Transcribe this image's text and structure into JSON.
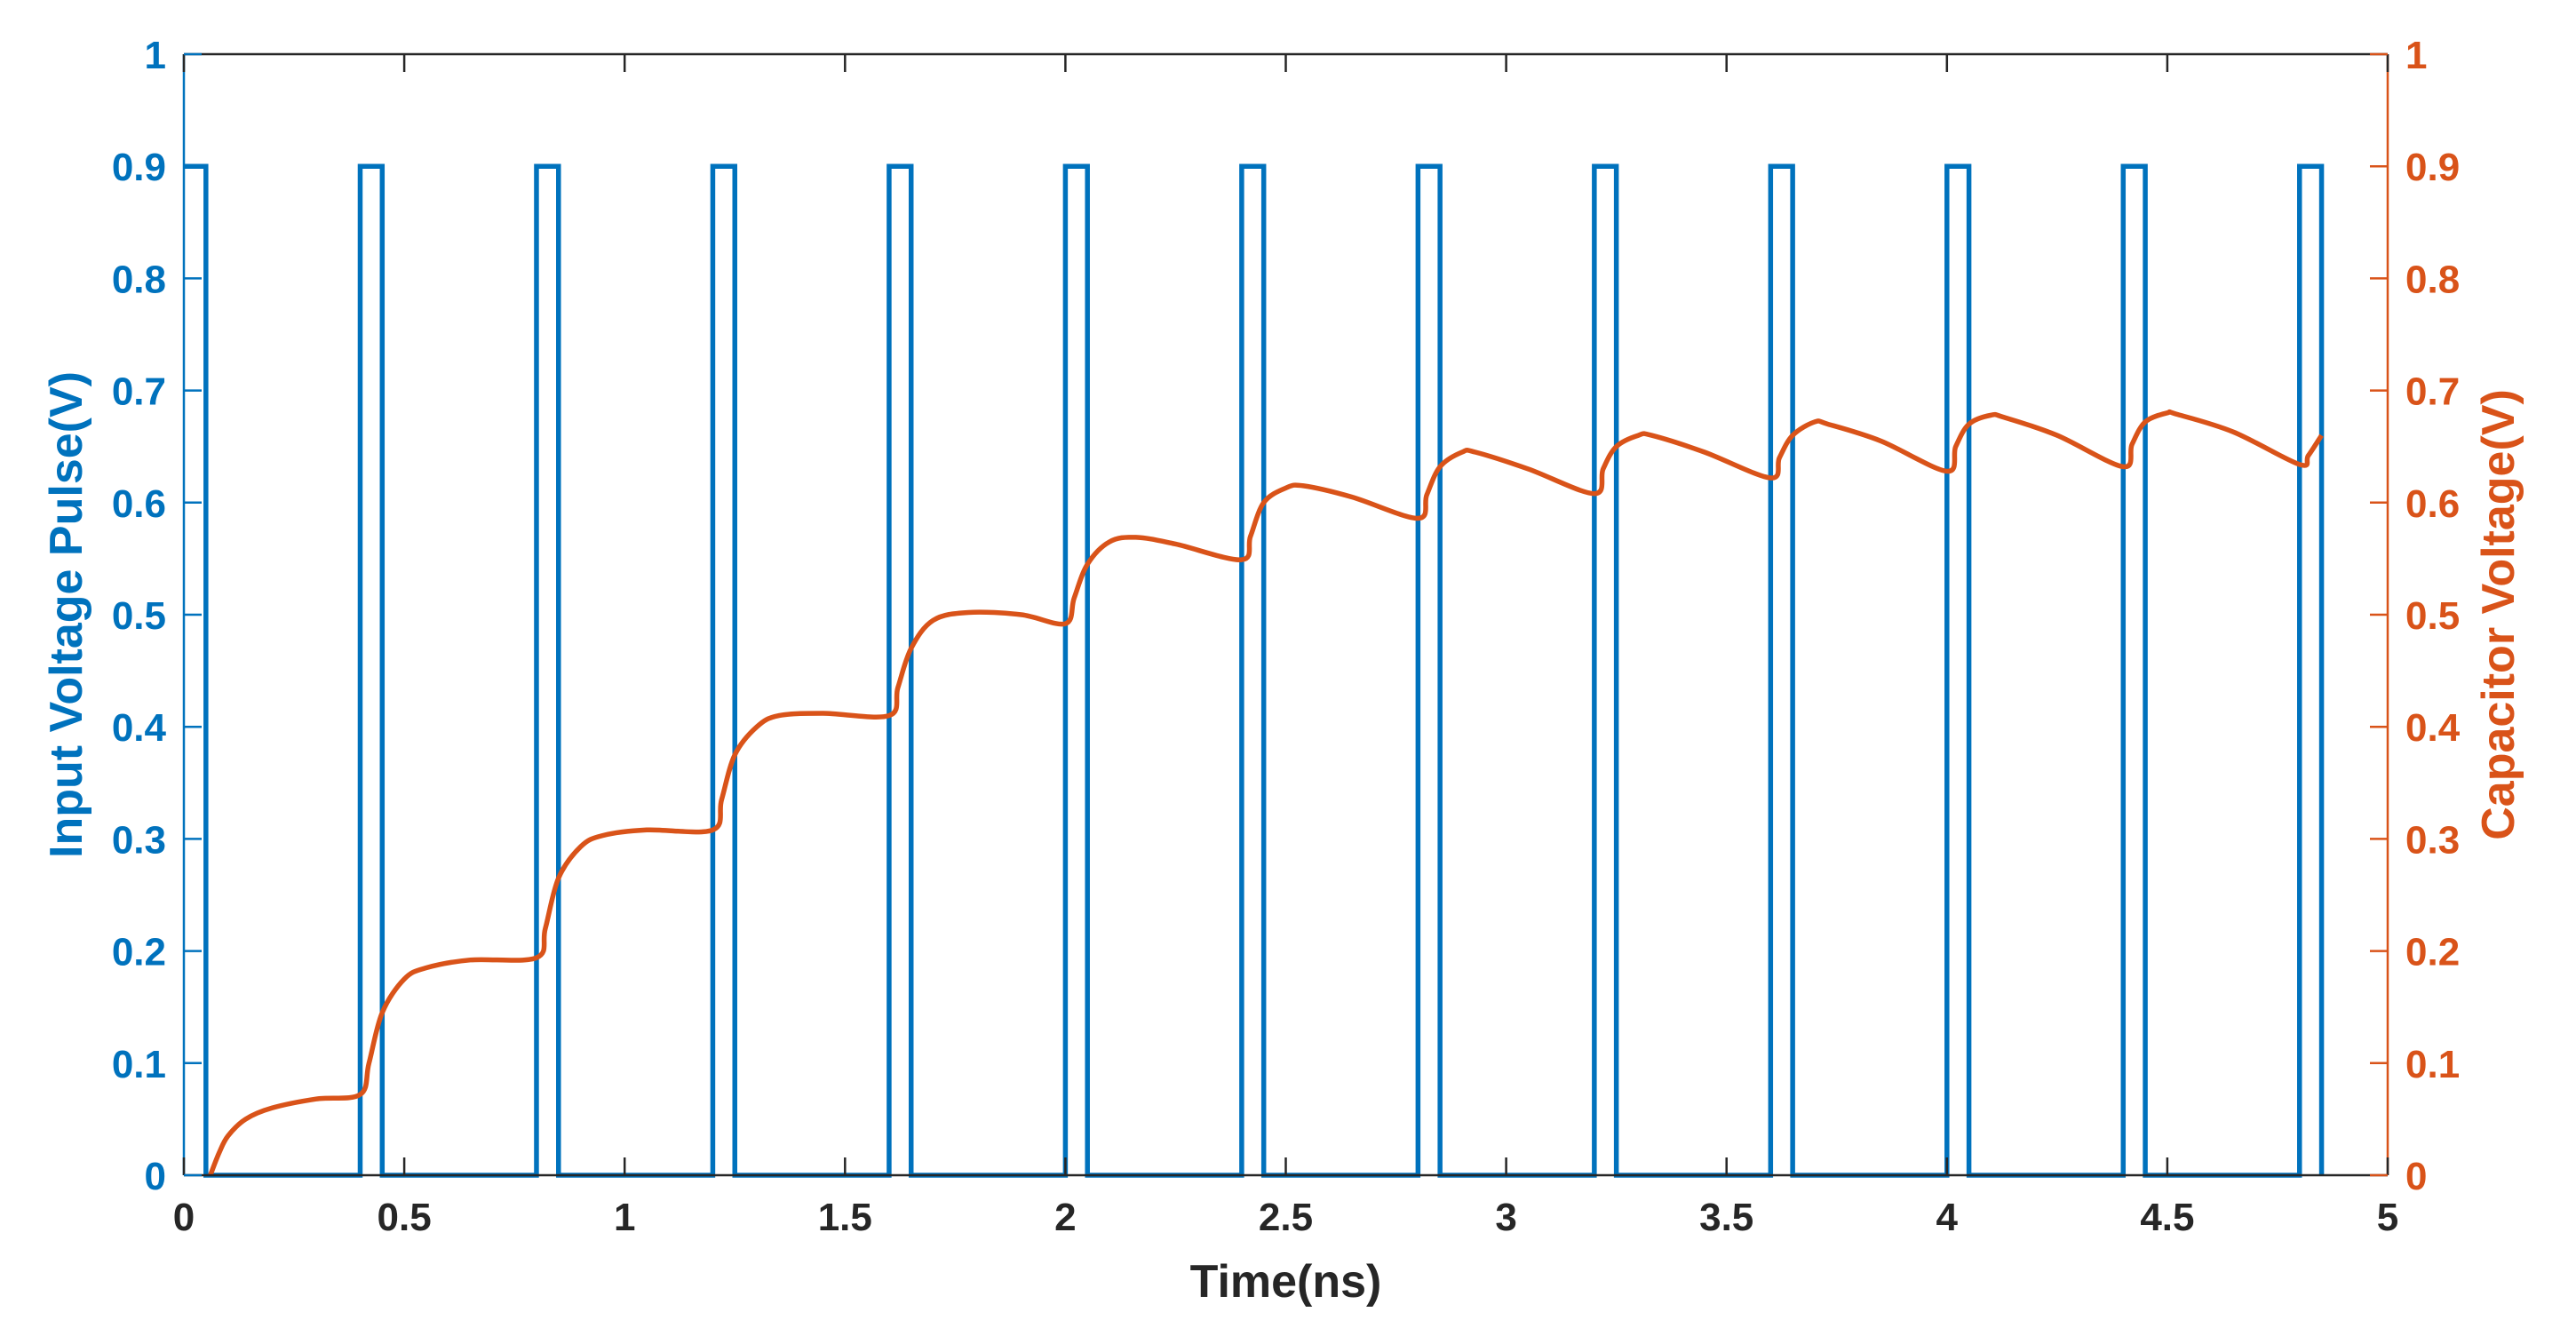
{
  "chart_data": {
    "type": "line",
    "xlabel": "Time(ns)",
    "ylabel_left": "Input Voltage Pulse(V)",
    "ylabel_right": "Capacitor Voltage(V)",
    "xlim": [
      0,
      5
    ],
    "ylim_left": [
      0,
      1
    ],
    "ylim_right": [
      0,
      1
    ],
    "grid": false,
    "x_ticks": [
      0,
      0.5,
      1,
      1.5,
      2,
      2.5,
      3,
      3.5,
      4,
      4.5,
      5
    ],
    "x_tick_labels": [
      "0",
      "0.5",
      "1",
      "1.5",
      "2",
      "2.5",
      "3",
      "3.5",
      "4",
      "4.5",
      "5"
    ],
    "y_ticks": [
      0,
      0.1,
      0.2,
      0.3,
      0.4,
      0.5,
      0.6,
      0.7,
      0.8,
      0.9,
      1
    ],
    "y_tick_labels": [
      "0",
      "0.1",
      "0.2",
      "0.3",
      "0.4",
      "0.5",
      "0.6",
      "0.7",
      "0.8",
      "0.9",
      "1"
    ],
    "colors": {
      "input": "#0072BD",
      "capacitor": "#D95319",
      "axes": "#262626"
    },
    "series": [
      {
        "axis": "left",
        "values_description_free": true,
        "pulse_high": 0.9,
        "pulse_low": 0,
        "pulses": [
          [
            -0.02,
            0.05
          ],
          [
            0.4,
            0.45
          ],
          [
            0.8,
            0.85
          ],
          [
            1.2,
            1.25
          ],
          [
            1.6,
            1.65
          ],
          [
            2.0,
            2.05
          ],
          [
            2.4,
            2.45
          ],
          [
            2.8,
            2.85
          ],
          [
            3.2,
            3.25
          ],
          [
            3.6,
            3.65
          ],
          [
            4.0,
            4.05
          ],
          [
            4.4,
            4.45
          ],
          [
            4.8,
            4.85
          ]
        ]
      },
      {
        "axis": "right",
        "x": [
          0.06,
          0.08,
          0.1,
          0.14,
          0.2,
          0.3,
          0.4,
          0.42,
          0.45,
          0.5,
          0.55,
          0.65,
          0.8,
          0.82,
          0.85,
          0.9,
          0.95,
          1.05,
          1.2,
          1.22,
          1.25,
          1.3,
          1.35,
          1.45,
          1.6,
          1.62,
          1.65,
          1.7,
          1.78,
          1.9,
          2.0,
          2.02,
          2.05,
          2.1,
          2.16,
          2.25,
          2.4,
          2.42,
          2.45,
          2.5,
          2.54,
          2.65,
          2.8,
          2.82,
          2.85,
          2.9,
          2.93,
          3.05,
          3.2,
          3.22,
          3.25,
          3.3,
          3.33,
          3.45,
          3.6,
          3.62,
          3.65,
          3.7,
          3.73,
          3.85,
          4.0,
          4.02,
          4.05,
          4.1,
          4.13,
          4.25,
          4.4,
          4.42,
          4.45,
          4.5,
          4.52,
          4.65,
          4.8,
          4.82,
          4.85
        ],
        "values": [
          0.0,
          0.02,
          0.035,
          0.05,
          0.06,
          0.068,
          0.072,
          0.1,
          0.145,
          0.175,
          0.185,
          0.192,
          0.194,
          0.22,
          0.265,
          0.293,
          0.303,
          0.308,
          0.308,
          0.335,
          0.375,
          0.4,
          0.41,
          0.412,
          0.41,
          0.435,
          0.47,
          0.495,
          0.502,
          0.5,
          0.492,
          0.515,
          0.545,
          0.565,
          0.569,
          0.563,
          0.549,
          0.57,
          0.6,
          0.613,
          0.615,
          0.605,
          0.586,
          0.607,
          0.632,
          0.645,
          0.645,
          0.63,
          0.608,
          0.63,
          0.65,
          0.66,
          0.66,
          0.645,
          0.622,
          0.64,
          0.66,
          0.672,
          0.67,
          0.655,
          0.628,
          0.65,
          0.67,
          0.678,
          0.676,
          0.66,
          0.632,
          0.652,
          0.672,
          0.68,
          0.679,
          0.663,
          0.634,
          0.642,
          0.66
        ]
      }
    ]
  }
}
